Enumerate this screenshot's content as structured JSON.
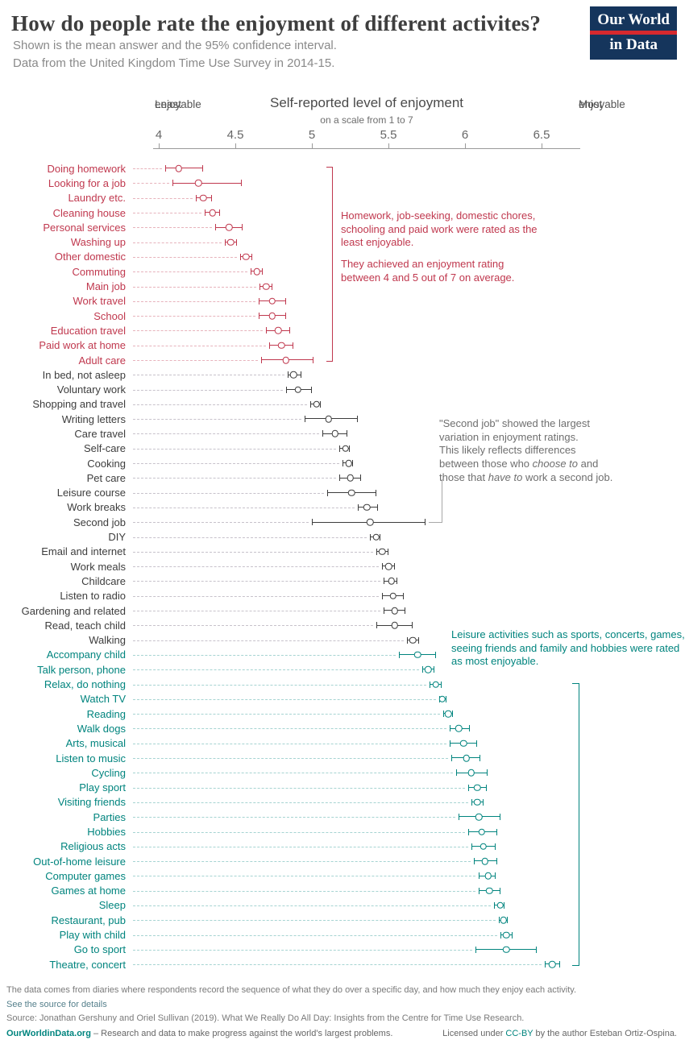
{
  "header": {
    "title": "How do people rate the enjoyment of different activites?",
    "subtitle1": "Shown is the mean answer and the 95% confidence interval.",
    "subtitle2": "Data from the United Kingdom Time Use Survey in 2014-15.",
    "logo": {
      "line1": "Our World",
      "line2": "in Data",
      "bg_color": "#15355c",
      "stripe_color": "#d6292e"
    }
  },
  "axis": {
    "title": "Self-reported level of enjoyment",
    "subtitle": "on a scale from 1 to 7",
    "left_label_line1": "Least",
    "left_label_line2": "enjoyable",
    "right_label_line1": "Most",
    "right_label_line2": "enjoyable",
    "ticks": [
      4,
      4.5,
      5,
      5.5,
      6,
      6.5
    ]
  },
  "chart_data": {
    "type": "scatter",
    "title": "Self-reported level of enjoyment (mean with 95% CI)",
    "xlabel": "Enjoyment rating on a scale from 1 to 7",
    "x_range": [
      4,
      6.5
    ],
    "group_colors": {
      "low": "#c0384e",
      "mid": "#3d3d3d",
      "high": "#00847e"
    },
    "activities": [
      {
        "label": "Doing homework",
        "group": "low",
        "mean": 4.13,
        "lo": 4.04,
        "hi": 4.29
      },
      {
        "label": "Looking for a job",
        "group": "low",
        "mean": 4.26,
        "lo": 4.09,
        "hi": 4.54
      },
      {
        "label": "Laundry etc.",
        "group": "low",
        "mean": 4.29,
        "lo": 4.24,
        "hi": 4.35
      },
      {
        "label": "Cleaning house",
        "group": "low",
        "mean": 4.35,
        "lo": 4.3,
        "hi": 4.4
      },
      {
        "label": "Personal services",
        "group": "low",
        "mean": 4.46,
        "lo": 4.37,
        "hi": 4.55
      },
      {
        "label": "Washing up",
        "group": "low",
        "mean": 4.47,
        "lo": 4.43,
        "hi": 4.51
      },
      {
        "label": "Other domestic",
        "group": "low",
        "mean": 4.57,
        "lo": 4.53,
        "hi": 4.61
      },
      {
        "label": "Commuting",
        "group": "low",
        "mean": 4.64,
        "lo": 4.6,
        "hi": 4.68
      },
      {
        "label": "Main job",
        "group": "low",
        "mean": 4.7,
        "lo": 4.66,
        "hi": 4.74
      },
      {
        "label": "Work travel",
        "group": "low",
        "mean": 4.74,
        "lo": 4.65,
        "hi": 4.83
      },
      {
        "label": "School",
        "group": "low",
        "mean": 4.74,
        "lo": 4.65,
        "hi": 4.83
      },
      {
        "label": "Education travel",
        "group": "low",
        "mean": 4.78,
        "lo": 4.7,
        "hi": 4.86
      },
      {
        "label": "Paid work at home",
        "group": "low",
        "mean": 4.8,
        "lo": 4.72,
        "hi": 4.88
      },
      {
        "label": "Adult care",
        "group": "low",
        "mean": 4.83,
        "lo": 4.67,
        "hi": 5.01
      },
      {
        "label": "In bed, not asleep",
        "group": "mid",
        "mean": 4.88,
        "lo": 4.84,
        "hi": 4.93
      },
      {
        "label": "Voluntary work",
        "group": "mid",
        "mean": 4.91,
        "lo": 4.83,
        "hi": 5.0
      },
      {
        "label": "Shopping and travel",
        "group": "mid",
        "mean": 5.03,
        "lo": 4.99,
        "hi": 5.06
      },
      {
        "label": "Writing letters",
        "group": "mid",
        "mean": 5.11,
        "lo": 4.95,
        "hi": 5.3
      },
      {
        "label": "Care travel",
        "group": "mid",
        "mean": 5.15,
        "lo": 5.07,
        "hi": 5.23
      },
      {
        "label": "Self-care",
        "group": "mid",
        "mean": 5.22,
        "lo": 5.18,
        "hi": 5.25
      },
      {
        "label": "Cooking",
        "group": "mid",
        "mean": 5.24,
        "lo": 5.2,
        "hi": 5.27
      },
      {
        "label": "Pet care",
        "group": "mid",
        "mean": 5.25,
        "lo": 5.18,
        "hi": 5.32
      },
      {
        "label": "Leisure course",
        "group": "mid",
        "mean": 5.26,
        "lo": 5.1,
        "hi": 5.42
      },
      {
        "label": "Work breaks",
        "group": "mid",
        "mean": 5.36,
        "lo": 5.3,
        "hi": 5.43
      },
      {
        "label": "Second job",
        "group": "mid",
        "mean": 5.38,
        "lo": 5.0,
        "hi": 5.74
      },
      {
        "label": "DIY",
        "group": "mid",
        "mean": 5.42,
        "lo": 5.38,
        "hi": 5.45
      },
      {
        "label": "Email and internet",
        "group": "mid",
        "mean": 5.46,
        "lo": 5.42,
        "hi": 5.5
      },
      {
        "label": "Work meals",
        "group": "mid",
        "mean": 5.5,
        "lo": 5.46,
        "hi": 5.54
      },
      {
        "label": "Childcare",
        "group": "mid",
        "mean": 5.52,
        "lo": 5.47,
        "hi": 5.56
      },
      {
        "label": "Listen to radio",
        "group": "mid",
        "mean": 5.53,
        "lo": 5.46,
        "hi": 5.6
      },
      {
        "label": "Gardening and related",
        "group": "mid",
        "mean": 5.54,
        "lo": 5.47,
        "hi": 5.61
      },
      {
        "label": "Read, teach child",
        "group": "mid",
        "mean": 5.54,
        "lo": 5.42,
        "hi": 5.66
      },
      {
        "label": "Walking",
        "group": "mid",
        "mean": 5.66,
        "lo": 5.62,
        "hi": 5.7
      },
      {
        "label": "Accompany child",
        "group": "high",
        "mean": 5.69,
        "lo": 5.57,
        "hi": 5.81
      },
      {
        "label": "Talk person, phone",
        "group": "high",
        "mean": 5.76,
        "lo": 5.72,
        "hi": 5.8
      },
      {
        "label": "Relax, do nothing",
        "group": "high",
        "mean": 5.81,
        "lo": 5.77,
        "hi": 5.85
      },
      {
        "label": "Watch TV",
        "group": "high",
        "mean": 5.85,
        "lo": 5.83,
        "hi": 5.88
      },
      {
        "label": "Reading",
        "group": "high",
        "mean": 5.89,
        "lo": 5.86,
        "hi": 5.92
      },
      {
        "label": "Walk dogs",
        "group": "high",
        "mean": 5.96,
        "lo": 5.9,
        "hi": 6.03
      },
      {
        "label": "Arts, musical",
        "group": "high",
        "mean": 5.99,
        "lo": 5.9,
        "hi": 6.08
      },
      {
        "label": "Listen to music",
        "group": "high",
        "mean": 6.01,
        "lo": 5.91,
        "hi": 6.1
      },
      {
        "label": "Cycling",
        "group": "high",
        "mean": 6.04,
        "lo": 5.94,
        "hi": 6.15
      },
      {
        "label": "Play sport",
        "group": "high",
        "mean": 6.08,
        "lo": 6.02,
        "hi": 6.14
      },
      {
        "label": "Visiting friends",
        "group": "high",
        "mean": 6.08,
        "lo": 6.04,
        "hi": 6.12
      },
      {
        "label": "Parties",
        "group": "high",
        "mean": 6.09,
        "lo": 5.96,
        "hi": 6.23
      },
      {
        "label": "Hobbies",
        "group": "high",
        "mean": 6.11,
        "lo": 6.02,
        "hi": 6.21
      },
      {
        "label": "Religious acts",
        "group": "high",
        "mean": 6.12,
        "lo": 6.04,
        "hi": 6.2
      },
      {
        "label": "Out-of-home leisure",
        "group": "high",
        "mean": 6.13,
        "lo": 6.06,
        "hi": 6.21
      },
      {
        "label": "Computer games",
        "group": "high",
        "mean": 6.15,
        "lo": 6.09,
        "hi": 6.2
      },
      {
        "label": "Games at home",
        "group": "high",
        "mean": 6.16,
        "lo": 6.09,
        "hi": 6.23
      },
      {
        "label": "Sleep",
        "group": "high",
        "mean": 6.23,
        "lo": 6.19,
        "hi": 6.26
      },
      {
        "label": "Restaurant, pub",
        "group": "high",
        "mean": 6.25,
        "lo": 6.22,
        "hi": 6.28
      },
      {
        "label": "Play with child",
        "group": "high",
        "mean": 6.27,
        "lo": 6.23,
        "hi": 6.31
      },
      {
        "label": "Go to sport",
        "group": "high",
        "mean": 6.27,
        "lo": 6.07,
        "hi": 6.47
      },
      {
        "label": "Theatre, concert",
        "group": "high",
        "mean": 6.57,
        "lo": 6.52,
        "hi": 6.62
      }
    ]
  },
  "annotations": {
    "least": {
      "p1": "Homework, job-seeking, domestic chores, schooling and paid work were rated as the least enjoyable.",
      "p2": "They achieved an enjoyment rating between 4 and 5 out of 7 on average."
    },
    "second_job": {
      "segments": [
        {
          "text": "\"Second job\" showed the largest\n variation in enjoyment ratings.\nThis likely reflects differences\nbetween those who "
        },
        {
          "text": "choose to",
          "italic": true
        },
        {
          "text": " and\nthose that "
        },
        {
          "text": "have to",
          "italic": true
        },
        {
          "text": " work a second job."
        }
      ]
    },
    "most": {
      "text": "Leisure activities such as sports, concerts, games, seeing friends and family and hobbies were rated as most enjoyable."
    }
  },
  "footer": {
    "note": "The data comes from diaries where respondents record the sequence of what they do over a specific day, and how much they enjoy each activity.",
    "see_source": "See the source for details",
    "source": "Source: Jonathan Gershuny and Oriel Sullivan (2019). What We Really Do All Day: Insights from the Centre for Time Use Research.",
    "site": "OurWorldinData.org",
    "tagline": " – Research and data to make progress against the world's largest problems.",
    "license_pre": "Licensed under ",
    "license_link": "CC-BY",
    "license_post": " by the author Esteban Ortiz-Ospina."
  }
}
